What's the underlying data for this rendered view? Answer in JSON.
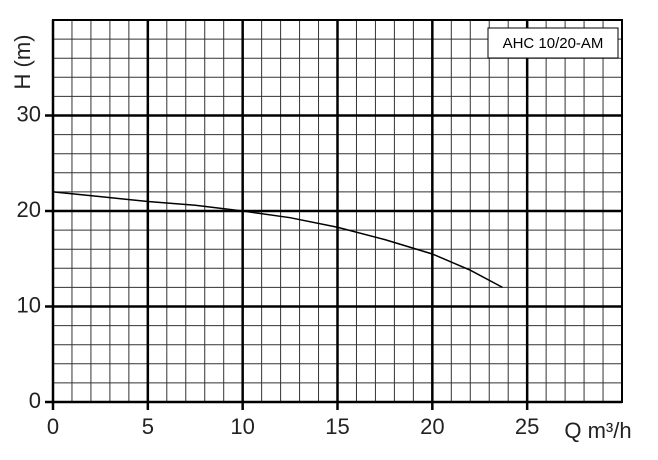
{
  "chart_data": {
    "type": "line",
    "title": "AHC 10/20-AM",
    "xlabel": "Q m³/h",
    "ylabel": "H (m)",
    "x": [
      0,
      2.5,
      5,
      7.5,
      10,
      12.5,
      15,
      17.5,
      20,
      22,
      23.7
    ],
    "series": [
      {
        "color": "#000000",
        "values": [
          22,
          21.5,
          21,
          20.6,
          20,
          19.3,
          18.3,
          17,
          15.5,
          13.8,
          12
        ]
      }
    ],
    "xlim": [
      0,
      30
    ],
    "ylim": [
      0,
      40
    ],
    "xticks": [
      0,
      5,
      10,
      15,
      20,
      25
    ],
    "yticks": [
      0,
      10,
      20,
      30
    ],
    "grid": true
  }
}
